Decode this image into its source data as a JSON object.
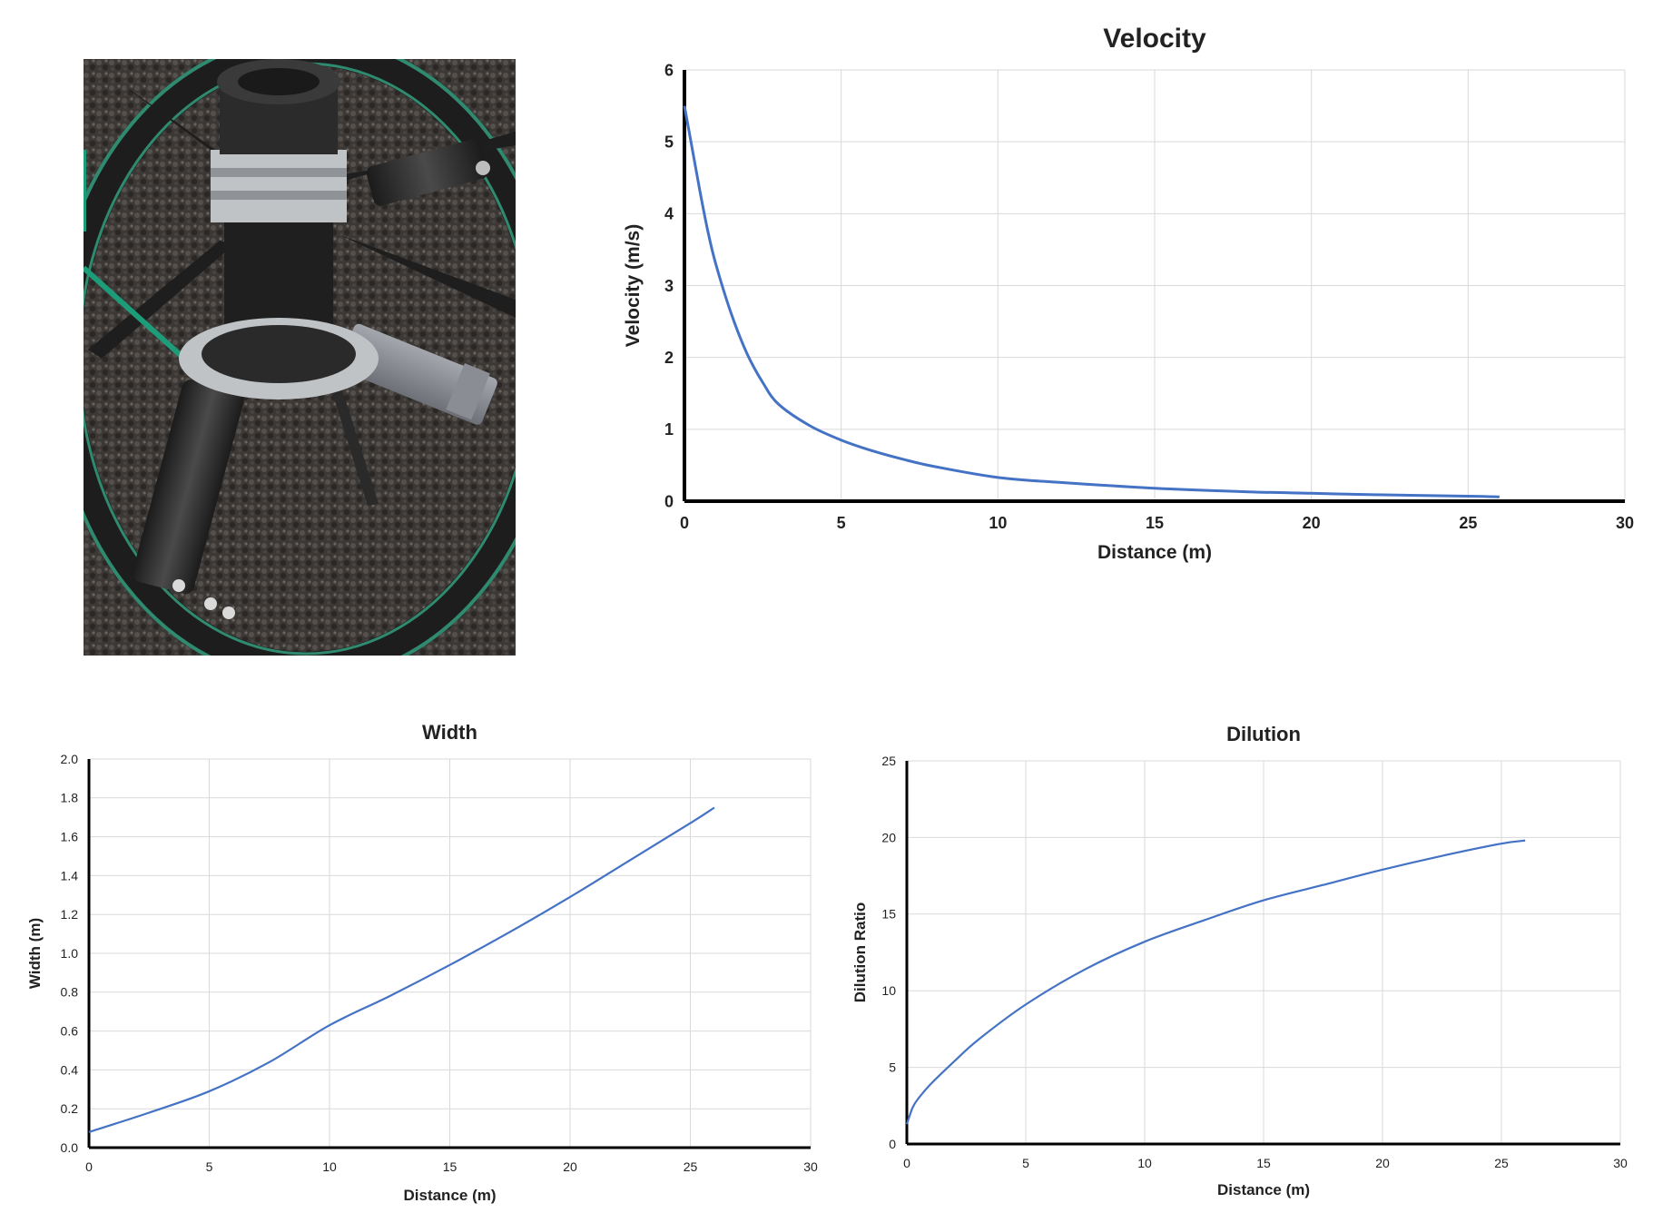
{
  "photo": {
    "description_icon": "diffuser-photo",
    "colors": {
      "pipe": "#2a2a2a",
      "flange": "#bfc3c6",
      "gravel": "#3d3a38",
      "ring_band": "#2f8a6f",
      "grey_pipe": "#8a8d93"
    }
  },
  "chart_data": [
    {
      "id": "velocity",
      "type": "line",
      "title": "Velocity",
      "xlabel": "Distance (m)",
      "ylabel": "Velocity (m/s)",
      "xlim": [
        0,
        30
      ],
      "ylim": [
        0,
        6
      ],
      "xticks": [
        "0",
        "5",
        "10",
        "15",
        "20",
        "25",
        "30"
      ],
      "yticks": [
        "0",
        "1",
        "2",
        "3",
        "4",
        "5",
        "6"
      ],
      "grid": true,
      "color": "#4472c4",
      "series": [
        {
          "x": [
            0,
            0.25,
            0.5,
            0.75,
            1,
            1.5,
            2,
            2.5,
            3,
            4,
            5,
            6,
            7,
            8,
            10,
            12,
            15,
            18,
            20,
            22,
            25,
            26
          ],
          "y": [
            5.5,
            4.9,
            4.3,
            3.75,
            3.3,
            2.6,
            2.05,
            1.65,
            1.35,
            1.05,
            0.85,
            0.7,
            0.58,
            0.48,
            0.33,
            0.26,
            0.18,
            0.13,
            0.11,
            0.09,
            0.07,
            0.06
          ]
        }
      ]
    },
    {
      "id": "width",
      "type": "line",
      "title": "Width",
      "xlabel": "Distance (m)",
      "ylabel": "Width (m)",
      "xlim": [
        0,
        30
      ],
      "ylim": [
        0,
        2
      ],
      "xticks": [
        "0",
        "5",
        "10",
        "15",
        "20",
        "25",
        "30"
      ],
      "yticks": [
        "0.0",
        "0.2",
        "0.4",
        "0.6",
        "0.8",
        "1.0",
        "1.2",
        "1.4",
        "1.6",
        "1.8",
        "2.0"
      ],
      "grid": true,
      "color": "#4472c4",
      "series": [
        {
          "x": [
            0,
            2.5,
            5,
            7.5,
            10,
            12.5,
            15,
            17.5,
            20,
            22.5,
            25,
            26
          ],
          "y": [
            0.08,
            0.18,
            0.29,
            0.44,
            0.63,
            0.78,
            0.94,
            1.11,
            1.29,
            1.48,
            1.67,
            1.75
          ]
        }
      ]
    },
    {
      "id": "dilution",
      "type": "line",
      "title": "Dilution",
      "xlabel": "Distance (m)",
      "ylabel": "Dilution Ratio",
      "xlim": [
        0,
        30
      ],
      "ylim": [
        0,
        25
      ],
      "xticks": [
        "0",
        "5",
        "10",
        "15",
        "20",
        "25",
        "30"
      ],
      "yticks": [
        "0",
        "5",
        "10",
        "15",
        "20",
        "25"
      ],
      "grid": true,
      "color": "#4472c4",
      "series": [
        {
          "x": [
            0,
            0.25,
            0.5,
            1,
            2,
            3,
            5,
            7.5,
            10,
            12.5,
            15,
            17.5,
            20,
            22.5,
            25,
            26
          ],
          "y": [
            1.3,
            2.4,
            3.0,
            3.9,
            5.4,
            6.8,
            9.1,
            11.4,
            13.2,
            14.6,
            15.9,
            16.9,
            17.9,
            18.8,
            19.6,
            19.8
          ]
        }
      ]
    }
  ]
}
